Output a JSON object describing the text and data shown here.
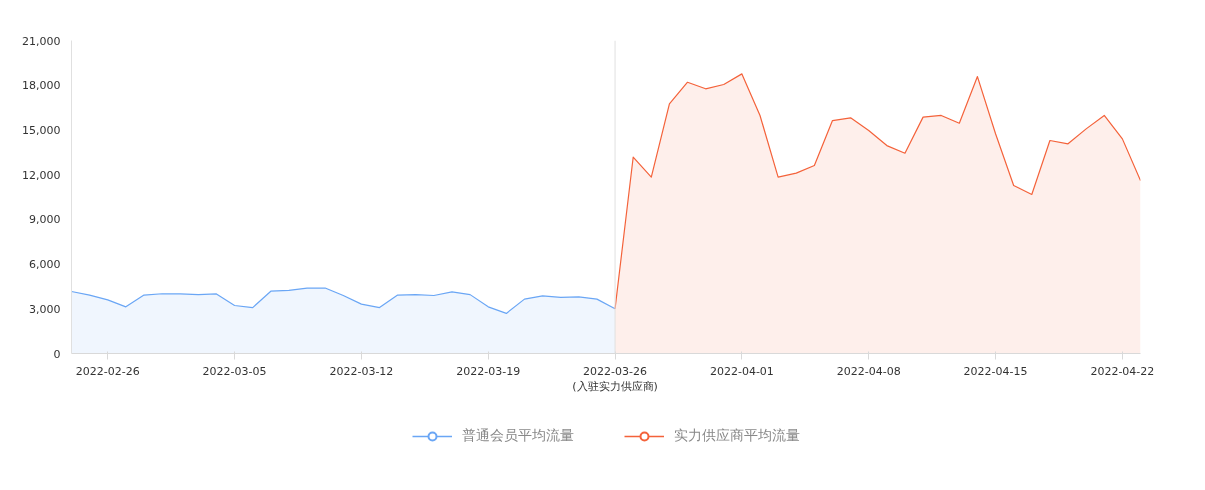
{
  "chart_data": {
    "type": "area",
    "categories": [
      null,
      null,
      "2022-02-26",
      null,
      null,
      null,
      null,
      null,
      null,
      "2022-03-05",
      null,
      null,
      null,
      null,
      null,
      null,
      "2022-03-12",
      null,
      null,
      null,
      null,
      null,
      null,
      "2022-03-19",
      null,
      null,
      null,
      null,
      null,
      null,
      "2022-03-26\n(入驻实力供应商)",
      null,
      null,
      null,
      null,
      null,
      null,
      "2022-04-01",
      null,
      null,
      null,
      null,
      null,
      null,
      "2022-04-08",
      null,
      null,
      null,
      null,
      null,
      null,
      "2022-04-15",
      null,
      null,
      null,
      null,
      null,
      null,
      "2022-04-22",
      null
    ],
    "series": [
      {
        "name": "普通会员平均流量",
        "color": "#6aa6f5",
        "values": [
          4160,
          3920,
          3600,
          3130,
          3920,
          4010,
          4000,
          3950,
          4000,
          3220,
          3080,
          4180,
          4230,
          4390,
          4390,
          3890,
          3310,
          3080,
          3920,
          3950,
          3890,
          4130,
          3950,
          3130,
          2690,
          3650,
          3870,
          3770,
          3800,
          3650,
          3000,
          null,
          null,
          null,
          null,
          null,
          null,
          null,
          null,
          null,
          null,
          null,
          null,
          null,
          null,
          null,
          null,
          null,
          null,
          null,
          null,
          null,
          null,
          null,
          null,
          null,
          null,
          null,
          null,
          null
        ]
      },
      {
        "name": "实力供应商平均流量",
        "color": "#f4623a",
        "values": [
          null,
          null,
          null,
          null,
          null,
          null,
          null,
          null,
          null,
          null,
          null,
          null,
          null,
          null,
          null,
          null,
          null,
          null,
          null,
          null,
          null,
          null,
          null,
          null,
          null,
          null,
          null,
          null,
          null,
          null,
          3000,
          13170,
          11830,
          16750,
          18200,
          17760,
          18050,
          18760,
          15970,
          11830,
          12100,
          12610,
          15630,
          15810,
          14960,
          13950,
          13440,
          15860,
          15970,
          15450,
          18580,
          14740,
          11270,
          10670,
          14290,
          14070,
          15070,
          15970,
          14400,
          11600
        ]
      }
    ],
    "ylim": [
      0,
      21000
    ],
    "yticks": [
      0,
      {
        "value": 3000,
        "label": "3,000"
      },
      {
        "value": 6000,
        "label": "6,000"
      },
      {
        "value": 9000,
        "label": "9,000"
      },
      {
        "value": 12000,
        "label": "12,000"
      },
      {
        "value": 15000,
        "label": "15,000"
      },
      {
        "value": 18000,
        "label": "18,000"
      },
      {
        "value": 21000,
        "label": "21,000"
      }
    ],
    "ref_lines": [
      {
        "axis": "x",
        "value": "2022-03-26\n(入驻实力供应商)",
        "color": "#e0e0e0"
      }
    ],
    "grid": false,
    "legend": "bottom"
  }
}
